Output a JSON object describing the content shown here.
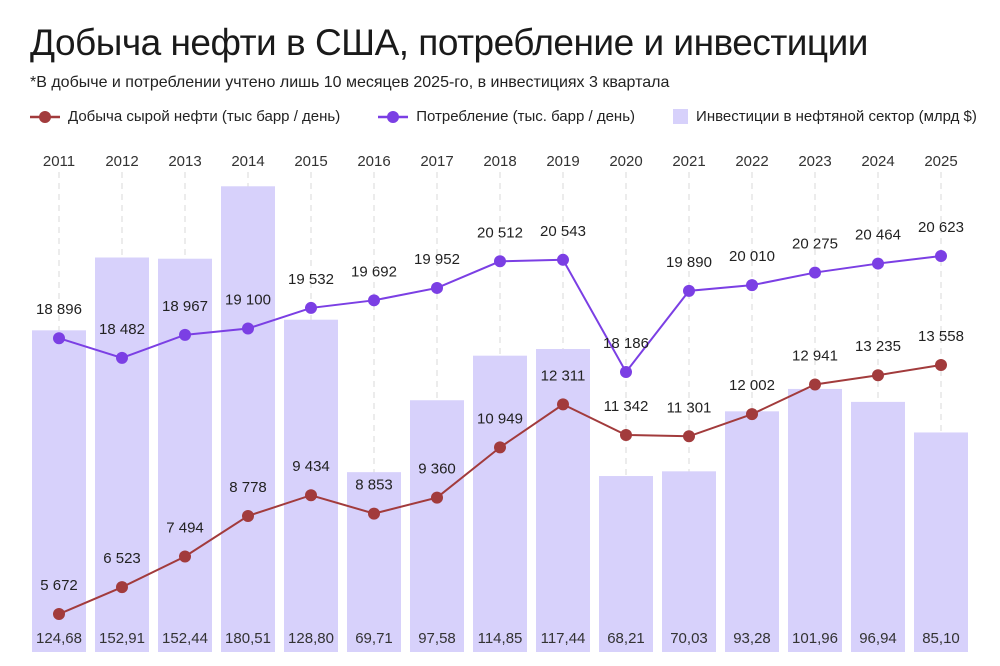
{
  "chart_data": {
    "type": "bar+line",
    "title": "Добыча нефти в США, потребление и инвестиции",
    "subtitle": "*В добыче и потреблении учтено лишь 10 месяцев 2025-го, в инвестициях 3 квартала",
    "categories": [
      "2011",
      "2012",
      "2013",
      "2014",
      "2015",
      "2016",
      "2017",
      "2018",
      "2019",
      "2020",
      "2021",
      "2022",
      "2023",
      "2024",
      "2025"
    ],
    "series": [
      {
        "name": "Добыча сырой нефти (тыс барр / день)",
        "type": "line",
        "color": "#a23b3c",
        "values": [
          5672,
          6523,
          7494,
          8778,
          9434,
          8853,
          9360,
          10949,
          12311,
          11342,
          11301,
          12002,
          12941,
          13235,
          13558
        ],
        "labels": [
          "5 672",
          "6 523",
          "7 494",
          "8 778",
          "9 434",
          "8 853",
          "9 360",
          "10 949",
          "12 311",
          "11 342",
          "11 301",
          "12 002",
          "12 941",
          "13 235",
          "13 558"
        ]
      },
      {
        "name": "Потребление  (тыс. барр / день)",
        "type": "line",
        "color": "#7b3fe4",
        "values": [
          18896,
          18482,
          18967,
          19100,
          19532,
          19692,
          19952,
          20512,
          20543,
          18186,
          19890,
          20010,
          20275,
          20464,
          20623
        ],
        "labels": [
          "18 896",
          "18 482",
          "18 967",
          "19 100",
          "19 532",
          "19 692",
          "19 952",
          "20 512",
          "20 543",
          "18 186",
          "19 890",
          "20 010",
          "20 275",
          "20 464",
          "20 623"
        ]
      },
      {
        "name": "Инвестиции в нефтяной сектор (млрд $)",
        "type": "bar",
        "color": "#d7d1fb",
        "values": [
          124.68,
          152.91,
          152.44,
          180.51,
          128.8,
          69.71,
          97.58,
          114.85,
          117.44,
          68.21,
          70.03,
          93.28,
          101.96,
          96.94,
          85.1
        ],
        "labels": [
          "124,68",
          "152,91",
          "152,44",
          "180,51",
          "128,80",
          "69,71",
          "97,58",
          "114,85",
          "117,44",
          "68,21",
          "70,03",
          "93,28",
          "101,96",
          "96,94",
          "85,10"
        ]
      }
    ],
    "grid": "vertical dashed",
    "legend": "top"
  }
}
